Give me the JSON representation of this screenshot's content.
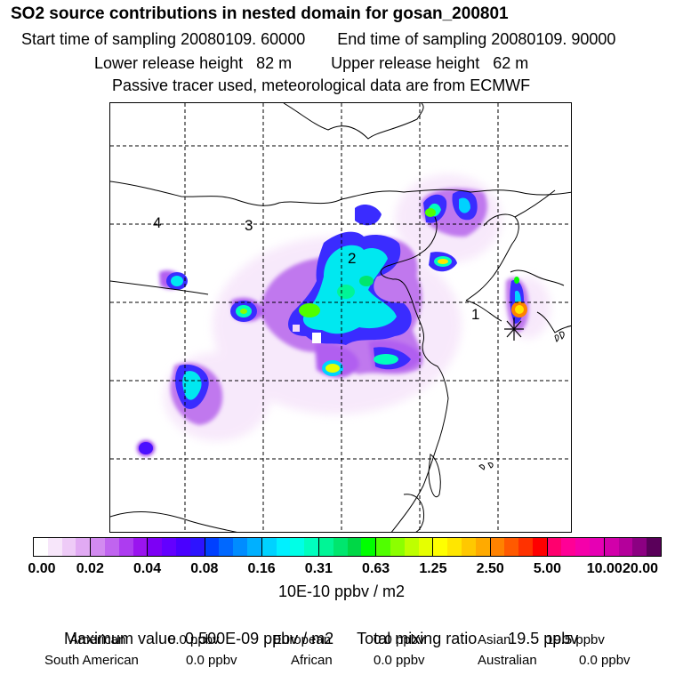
{
  "header": {
    "title": "SO2 source contributions in nested domain for gosan_200801",
    "start_sampling": "Start time of sampling 20080109. 60000",
    "end_sampling": "End time of sampling 20080109. 90000",
    "lower_release": "Lower release height   82 m",
    "upper_release": "Upper release height   62 m",
    "note": "Passive tracer used, meteorological data are from ECMWF"
  },
  "map": {
    "region_labels": [
      "1",
      "2",
      "3",
      "4"
    ],
    "receptor_marker": "asterisk"
  },
  "colorbar": {
    "tick_labels": [
      "0.00",
      "0.02",
      "0.04",
      "0.08",
      "0.16",
      "0.31",
      "0.63",
      "1.25",
      "2.50",
      "5.00",
      "10.00",
      "20.00"
    ],
    "colors": [
      [
        "#ffffff",
        "#f7e6fa",
        "#eecbf7",
        "#e1aaf3"
      ],
      [
        "#d28af0",
        "#c064ef",
        "#ad3cf0",
        "#9a14ef"
      ],
      [
        "#7d00f5",
        "#6300ff",
        "#4a00ff",
        "#2d14ff"
      ],
      [
        "#0040ff",
        "#0068ff",
        "#008cff",
        "#00b0ff"
      ],
      [
        "#00d2ff",
        "#00f0ff",
        "#00ffe6",
        "#00ffbe"
      ],
      [
        "#00f596",
        "#00e66e",
        "#00d746",
        "#00ff00"
      ],
      [
        "#50ff00",
        "#8cff00",
        "#beff00",
        "#e6ff00"
      ],
      [
        "#ffff00",
        "#ffe600",
        "#ffc800",
        "#ffaa00"
      ],
      [
        "#ff8200",
        "#ff5a00",
        "#ff3200",
        "#ff0000"
      ],
      [
        "#ff006e",
        "#ff0096",
        "#f500aa",
        "#e600b4"
      ],
      [
        "#d200aa",
        "#b4009b",
        "#8c0082",
        "#5a005a"
      ]
    ],
    "unit": "10E-10 ppbv / m2"
  },
  "summary": {
    "max_value": "Maximum value  0.500E-09 ppbv / m2",
    "total_mixing": "Total mixing ratio       19.5 ppbv",
    "american_label": "American",
    "american_value": "0.0 ppbv",
    "european_label": "European",
    "european_value": "0.0 ppbv",
    "asian_label": "Asian",
    "asian_value": "19.5 ppbv",
    "south_american_label": "South American",
    "south_american_value": "0.0 ppbv",
    "african_label": "African",
    "african_value": "0.0 ppbv",
    "australian_label": "Australian",
    "australian_value": "0.0 ppbv"
  }
}
